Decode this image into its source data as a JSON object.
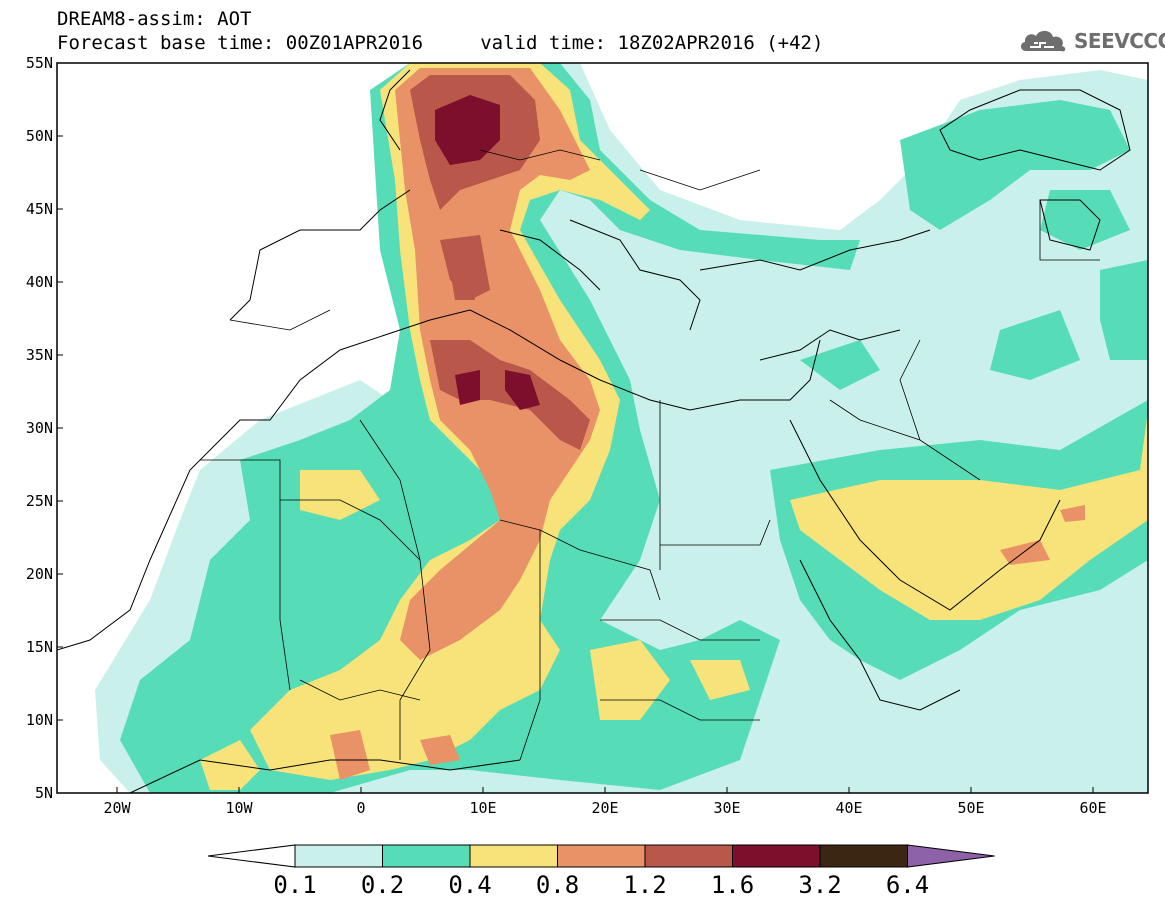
{
  "header": {
    "line1": "DREAM8-assim: AOT",
    "line2": "Forecast base time: 00Z01APR2016     valid time: 18Z02APR2016 (+42)"
  },
  "logo": {
    "text": "SEEVCCC",
    "icon": "cloud-icon"
  },
  "axes": {
    "lat_ticks": [
      "55N",
      "50N",
      "45N",
      "40N",
      "35N",
      "30N",
      "25N",
      "20N",
      "15N",
      "10N",
      "5N"
    ],
    "lon_ticks": [
      "20W",
      "10W",
      "0",
      "10E",
      "20E",
      "30E",
      "40E",
      "50E",
      "60E"
    ]
  },
  "colorbar": {
    "labels": [
      "0.1",
      "0.2",
      "0.4",
      "0.8",
      "1.2",
      "1.6",
      "3.2",
      "6.4"
    ],
    "colors": [
      "#ffffff",
      "#c9f0ea",
      "#57dcb8",
      "#f7e37a",
      "#e99268",
      "#b8574a",
      "#7d0e2c",
      "#3b2614",
      "#8e62a8"
    ]
  },
  "map_colors": {
    "ocean": "#ffffff",
    "level1": "#c9f0ea",
    "level2": "#57dcb8",
    "level3": "#f7e37a",
    "level4": "#e99268",
    "level5": "#b8574a",
    "level6": "#7d0e2c",
    "level7": "#3b2614",
    "border": "#000000"
  }
}
